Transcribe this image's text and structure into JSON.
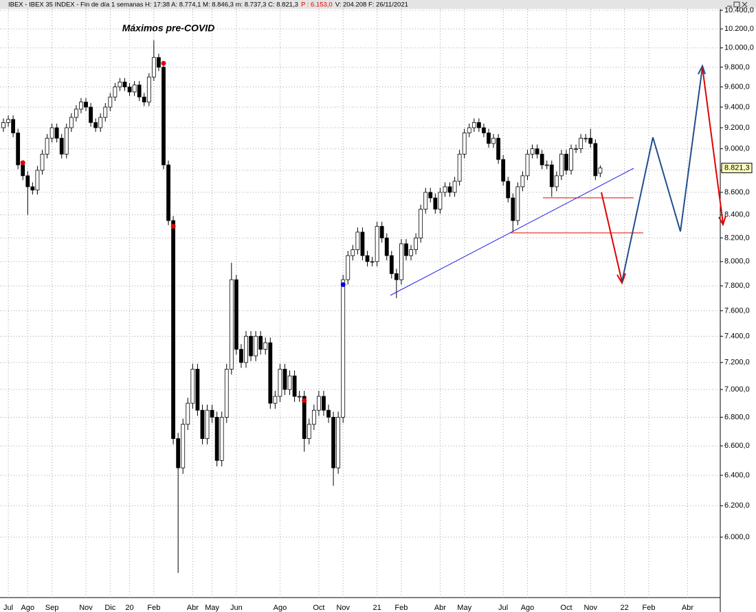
{
  "header": {
    "text": "IBEX - IBEX 35 INDEX - Fin de día 1 semanas H: 17:38  A: 8.774,1  M: 8.846,3  m: 8.737,3  C: 8.821,3",
    "p_text": "P : 6.153,0",
    "rest_text": "V: 204.208  F: 26/11/2021"
  },
  "chart_data": {
    "type": "candlestick",
    "log": true,
    "grid": true,
    "up_color": "#ffffff",
    "down_color": "#000000",
    "annotation": "Máximos pre-COVID",
    "annotation_color": "#e00000",
    "last_price_label": "8.821,3",
    "categories": [
      null,
      "Jul",
      null,
      null,
      null,
      "Ago",
      null,
      null,
      null,
      null,
      "Sep",
      null,
      null,
      null,
      null,
      null,
      null,
      "Nov",
      null,
      null,
      null,
      null,
      "Dic",
      null,
      null,
      null,
      "20",
      null,
      null,
      null,
      null,
      "Feb",
      null,
      null,
      null,
      null,
      null,
      null,
      null,
      "Abr",
      null,
      null,
      null,
      "May",
      null,
      null,
      null,
      null,
      "Jun",
      null,
      null,
      null,
      null,
      null,
      null,
      null,
      null,
      "Ago",
      null,
      null,
      null,
      null,
      null,
      null,
      null,
      "Oct",
      null,
      null,
      null,
      null,
      "Nov",
      null,
      null,
      null,
      null,
      null,
      null,
      "21",
      null,
      null,
      null,
      null,
      "Feb",
      null,
      null,
      null,
      null,
      null,
      null,
      null,
      "Abr",
      null,
      null,
      null,
      null,
      "May",
      null,
      null,
      null,
      null,
      null,
      null,
      null,
      "Jul",
      null,
      null,
      null,
      null,
      "Ago",
      null,
      null,
      null,
      null,
      null,
      null,
      null,
      "Oct",
      null,
      null,
      null,
      null,
      "Nov",
      null,
      null,
      null,
      null,
      null,
      null,
      "22",
      null,
      null,
      null,
      null,
      "Feb",
      null,
      null,
      null,
      null,
      null,
      null,
      null,
      "Abr",
      null,
      null,
      null,
      null,
      null
    ],
    "open": [
      9200,
      9250,
      9280,
      9150,
      8850,
      8750,
      8650,
      8620,
      8800,
      8950,
      9100,
      9200,
      9100,
      8950,
      9200,
      9300,
      9380,
      9450,
      9400,
      9250,
      9200,
      9300,
      9400,
      9500,
      9600,
      9650,
      9600,
      9550,
      9620,
      9500,
      9450,
      9700,
      9900,
      9800,
      8850,
      8350,
      6650,
      6450,
      6750,
      6900,
      7150,
      6850,
      6650,
      6850,
      6800,
      6500,
      6800,
      7150,
      7850,
      7300,
      7200,
      7400,
      7250,
      7400,
      7300,
      7350,
      6900,
      6950,
      7150,
      7000,
      7100,
      6950,
      6950,
      6650,
      6750,
      6850,
      6950,
      6850,
      6800,
      6450,
      6800,
      7850,
      8050,
      8100,
      8250,
      8050,
      8000,
      8000,
      8300,
      8200,
      8050,
      7900,
      7850,
      8150,
      8050,
      8100,
      8200,
      8450,
      8600,
      8550,
      8450,
      8600,
      8650,
      8600,
      8700,
      8950,
      9150,
      9200,
      9250,
      9200,
      9150,
      9050,
      9100,
      8900,
      8700,
      8550,
      8350,
      8650,
      8750,
      8950,
      9000,
      8950,
      8850,
      8850,
      8650,
      8750,
      8950,
      8800,
      9000,
      9000,
      9100,
      9100,
      9050,
      8774.1,
      null,
      null,
      null,
      null,
      null,
      null,
      null,
      null,
      null,
      null,
      null,
      null,
      null,
      null,
      null,
      null,
      null,
      null,
      null,
      null,
      null,
      null,
      null
    ],
    "high": [
      9290,
      9320,
      9320,
      9190,
      8890,
      8790,
      8690,
      8840,
      8990,
      9140,
      9240,
      9240,
      9140,
      9240,
      9340,
      9420,
      9490,
      9490,
      9440,
      9290,
      9340,
      9440,
      9540,
      9640,
      9690,
      9690,
      9640,
      9660,
      9660,
      9540,
      9740,
      10080,
      9940,
      9840,
      8890,
      8390,
      6690,
      6790,
      6940,
      7190,
      7190,
      6890,
      6890,
      6890,
      6840,
      6840,
      7190,
      7990,
      7890,
      7340,
      7440,
      7440,
      7440,
      7440,
      7390,
      7390,
      6990,
      7190,
      7190,
      7140,
      7140,
      6990,
      6990,
      6790,
      6890,
      6990,
      6990,
      6890,
      6840,
      6840,
      7890,
      8090,
      8140,
      8290,
      8290,
      8090,
      8040,
      8340,
      8340,
      8240,
      8090,
      7940,
      8190,
      8190,
      8140,
      8240,
      8490,
      8640,
      8640,
      8590,
      8640,
      8690,
      8690,
      8740,
      8990,
      9190,
      9240,
      9290,
      9290,
      9240,
      9190,
      9140,
      9140,
      8940,
      8740,
      8590,
      8690,
      8790,
      8990,
      9040,
      9040,
      8990,
      8890,
      8890,
      8790,
      8990,
      8990,
      9040,
      9040,
      9140,
      9140,
      9190,
      9090,
      8846.3,
      null,
      null,
      null,
      null,
      null,
      null,
      null,
      null,
      null,
      null,
      null,
      null,
      null,
      null,
      null,
      null,
      null,
      null,
      null,
      null,
      null,
      null,
      null
    ],
    "low": [
      9160,
      9210,
      9110,
      8810,
      8710,
      8400,
      8580,
      8580,
      8760,
      8910,
      9060,
      9060,
      8910,
      8910,
      9160,
      9260,
      9340,
      9360,
      9210,
      9160,
      9160,
      9260,
      9360,
      9460,
      9560,
      9560,
      9510,
      9510,
      9460,
      9410,
      9410,
      9660,
      9760,
      8810,
      8310,
      6610,
      5780,
      6410,
      6710,
      6860,
      6810,
      6610,
      6610,
      6760,
      6460,
      6460,
      6760,
      7110,
      7260,
      7160,
      7160,
      7210,
      7210,
      7260,
      7260,
      6860,
      6860,
      6910,
      6960,
      6960,
      6910,
      6910,
      6560,
      6610,
      6710,
      6810,
      6810,
      6760,
      6330,
      6410,
      6760,
      7810,
      8010,
      8060,
      8010,
      7960,
      7960,
      7960,
      8160,
      8010,
      7860,
      7700,
      7810,
      8010,
      8010,
      8060,
      8160,
      8410,
      8510,
      8410,
      8410,
      8560,
      8560,
      8560,
      8660,
      8910,
      9110,
      9160,
      9160,
      9110,
      9010,
      9010,
      8860,
      8660,
      8510,
      8250,
      8310,
      8610,
      8710,
      8910,
      8910,
      8810,
      8810,
      8560,
      8610,
      8710,
      8760,
      8760,
      8960,
      8960,
      9060,
      9010,
      8710,
      8737.3,
      null,
      null,
      null,
      null,
      null,
      null,
      null,
      null,
      null,
      null,
      null,
      null,
      null,
      null,
      null,
      null,
      null,
      null,
      null,
      null,
      null,
      null,
      null
    ],
    "close": [
      9250,
      9280,
      9150,
      8850,
      8750,
      8650,
      8620,
      8800,
      8950,
      9100,
      9200,
      9100,
      8950,
      9200,
      9300,
      9380,
      9450,
      9400,
      9250,
      9200,
      9300,
      9400,
      9500,
      9600,
      9650,
      9600,
      9550,
      9620,
      9500,
      9450,
      9700,
      9900,
      9800,
      8850,
      8350,
      6650,
      6450,
      6750,
      6900,
      7150,
      6850,
      6650,
      6850,
      6800,
      6500,
      6800,
      7150,
      7850,
      7300,
      7200,
      7400,
      7250,
      7400,
      7300,
      7350,
      6900,
      6950,
      7150,
      7000,
      7100,
      6950,
      6950,
      6650,
      6750,
      6850,
      6950,
      6850,
      6800,
      6450,
      6800,
      7850,
      8050,
      8100,
      8250,
      8050,
      8000,
      8000,
      8300,
      8200,
      8050,
      7900,
      7850,
      8150,
      8050,
      8100,
      8200,
      8450,
      8600,
      8550,
      8450,
      8600,
      8650,
      8600,
      8700,
      8950,
      9150,
      9200,
      9250,
      9200,
      9150,
      9050,
      9100,
      8900,
      8700,
      8550,
      8350,
      8650,
      8750,
      8950,
      9000,
      8950,
      8850,
      8850,
      8650,
      8750,
      8950,
      8800,
      9000,
      9000,
      9100,
      9100,
      9050,
      8750,
      8821.3,
      null,
      null,
      null,
      null,
      null,
      null,
      null,
      null,
      null,
      null,
      null,
      null,
      null,
      null,
      null,
      null,
      null,
      null,
      null,
      null,
      null,
      null,
      null
    ],
    "markers": [
      {
        "index": 4,
        "value": 8870,
        "color": "#e00000"
      },
      {
        "index": 33,
        "value": 9840,
        "color": "#e00000"
      },
      {
        "index": 35,
        "value": 8300,
        "color": "#e00000"
      },
      {
        "index": 62,
        "value": 6920,
        "color": "#e00000"
      },
      {
        "index": 70,
        "value": 7810,
        "color": "#0000e0"
      }
    ],
    "ylim": [
      5633,
      10400
    ],
    "yticks": [
      {
        "value": 6000,
        "label": "6.000,0"
      },
      {
        "value": 6200,
        "label": "6.200,0"
      },
      {
        "value": 6400,
        "label": "6.400,0"
      },
      {
        "value": 6600,
        "label": "6.600,0"
      },
      {
        "value": 6800,
        "label": "6.800,0"
      },
      {
        "value": 7000,
        "label": "7.000,0"
      },
      {
        "value": 7200,
        "label": "7.200,0"
      },
      {
        "value": 7400,
        "label": "7.400,0"
      },
      {
        "value": 7600,
        "label": "7.600,0"
      },
      {
        "value": 7800,
        "label": "7.800,0"
      },
      {
        "value": 8000,
        "label": "8.000,0"
      },
      {
        "value": 8200,
        "label": "8.200,0"
      },
      {
        "value": 8400,
        "label": "8.400,0"
      },
      {
        "value": 8600,
        "label": "8.600,0"
      },
      {
        "value": 8800,
        "label": "8.800,0"
      },
      {
        "value": 9000,
        "label": "9.000,0"
      },
      {
        "value": 9200,
        "label": "9.200,0"
      },
      {
        "value": 9400,
        "label": "9.400,0"
      },
      {
        "value": 9600,
        "label": "9.600,0"
      },
      {
        "value": 9800,
        "label": "9.800,0"
      },
      {
        "value": 10000,
        "label": "10.000,0"
      },
      {
        "value": 10200,
        "label": "10.200,0"
      },
      {
        "value": 10400,
        "label": "10.400,0"
      }
    ]
  }
}
